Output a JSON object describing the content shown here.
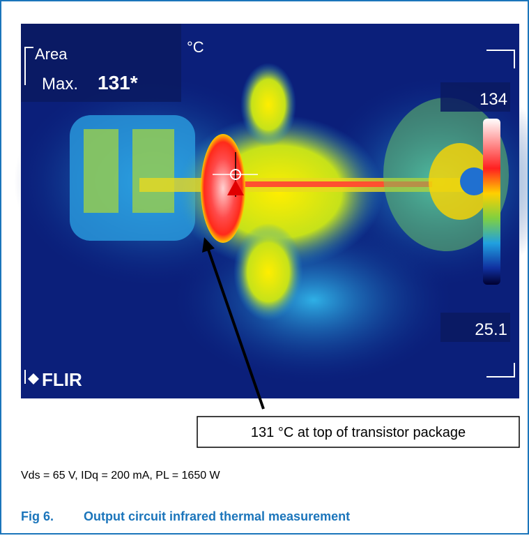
{
  "figure": {
    "image": {
      "area_label": "Area",
      "max_label": "Max.",
      "max_value": "131*",
      "unit": "°C",
      "scale_max": "134",
      "scale_min": "25.1",
      "brand": "FLIR"
    },
    "callout": "131 °C at top of transistor package",
    "conditions": "Vds = 65 V, IDq = 200 mA, PL = 1650 W",
    "caption": {
      "number": "Fig 6.",
      "title": "Output circuit infrared thermal measurement"
    }
  }
}
